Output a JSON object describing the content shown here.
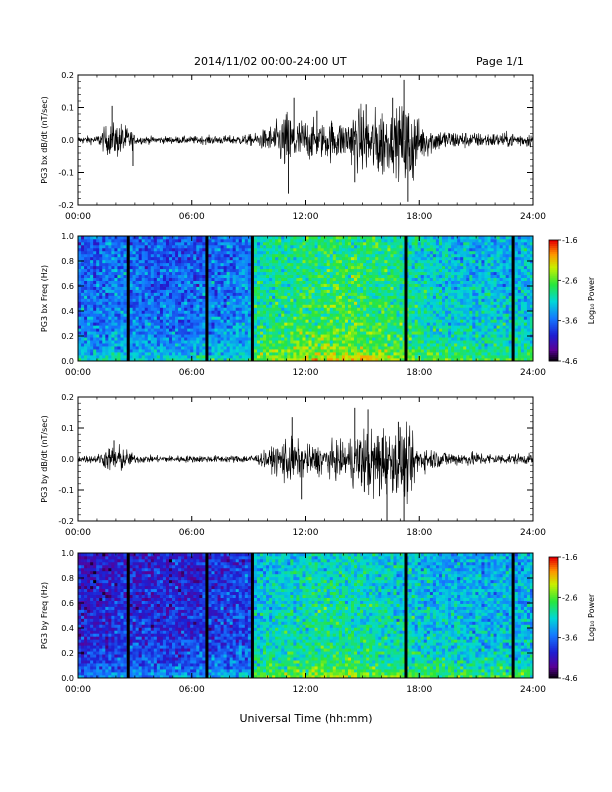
{
  "header": {
    "title": "2014/11/02  00:00-24:00 UT",
    "page": "Page 1/1"
  },
  "footer": {
    "xlabel": "Universal Time (hh:mm)"
  },
  "chart_data": [
    {
      "type": "line",
      "ylabel": "PG3 bx dB/dt (nT/sec)",
      "ylim": [
        -0.2,
        0.2
      ],
      "yticks": [
        "-0.2",
        "-0.1",
        "0.0",
        "0.1",
        "0.2"
      ],
      "xticks": [
        "00:00",
        "06:00",
        "12:00",
        "18:00",
        "24:00"
      ],
      "x_range_hours": [
        0,
        24
      ],
      "envelope": {
        "hours": [
          0,
          1,
          1.5,
          2.2,
          2.8,
          3,
          4,
          5,
          6,
          7,
          8,
          9,
          9.5,
          10,
          10.5,
          11,
          11.5,
          12,
          12.5,
          13,
          13.5,
          14,
          14.5,
          15,
          15.5,
          16,
          16.5,
          17,
          17.5,
          18,
          19,
          20,
          21,
          22,
          23,
          24
        ],
        "upper": [
          0.01,
          0.012,
          0.04,
          0.05,
          0.03,
          0.012,
          0.01,
          0.01,
          0.01,
          0.012,
          0.012,
          0.015,
          0.02,
          0.035,
          0.05,
          0.08,
          0.06,
          0.06,
          0.05,
          0.045,
          0.06,
          0.05,
          0.08,
          0.09,
          0.07,
          0.1,
          0.07,
          0.09,
          0.12,
          0.05,
          0.03,
          0.025,
          0.02,
          0.02,
          0.02,
          0.02
        ],
        "lower": [
          -0.01,
          -0.012,
          -0.04,
          -0.05,
          -0.03,
          -0.012,
          -0.01,
          -0.01,
          -0.01,
          -0.012,
          -0.012,
          -0.015,
          -0.02,
          -0.035,
          -0.05,
          -0.1,
          -0.07,
          -0.06,
          -0.05,
          -0.05,
          -0.06,
          -0.05,
          -0.07,
          -0.09,
          -0.1,
          -0.12,
          -0.07,
          -0.1,
          -0.16,
          -0.06,
          -0.03,
          -0.025,
          -0.02,
          -0.02,
          -0.02,
          -0.02
        ]
      },
      "spikes": [
        {
          "hour": 1.8,
          "value": 0.105
        },
        {
          "hour": 2.9,
          "value": -0.08
        },
        {
          "hour": 11.1,
          "value": -0.165
        },
        {
          "hour": 11.4,
          "value": 0.13
        },
        {
          "hour": 12.6,
          "value": 0.09
        },
        {
          "hour": 14.6,
          "value": -0.13
        },
        {
          "hour": 15.2,
          "value": 0.11
        },
        {
          "hour": 16.6,
          "value": 0.13
        },
        {
          "hour": 17.2,
          "value": 0.185
        },
        {
          "hour": 17.4,
          "value": -0.19
        }
      ]
    },
    {
      "type": "heatmap",
      "ylabel": "PG3 bx Freq (Hz)",
      "ylim": [
        0,
        1.0
      ],
      "yticks": [
        "0.0",
        "0.2",
        "0.4",
        "0.6",
        "0.8",
        "1.0"
      ],
      "xticks": [
        "00:00",
        "06:00",
        "12:00",
        "18:00",
        "24:00"
      ],
      "colorbar": {
        "label": "Log₁₀ Power",
        "min": -4.6,
        "max": -1.6,
        "ticks": [
          "-1.6",
          "-2.6",
          "-3.6",
          "-4.6"
        ]
      },
      "gaps_hours": [
        2.65,
        6.8,
        9.2,
        17.3,
        22.95
      ],
      "level_profile": {
        "hours": [
          0,
          2,
          4,
          6,
          8,
          9.2,
          9.3,
          10,
          11,
          12,
          13,
          14,
          15,
          16,
          17,
          18,
          19,
          20,
          22,
          24
        ],
        "log_power": [
          -3.6,
          -3.5,
          -3.6,
          -3.6,
          -3.5,
          -3.4,
          -3.0,
          -2.9,
          -2.85,
          -2.8,
          -2.75,
          -2.7,
          -2.75,
          -2.8,
          -2.9,
          -3.0,
          -3.1,
          -3.15,
          -3.2,
          -3.2
        ]
      }
    },
    {
      "type": "line",
      "ylabel": "PG3 by dB/dt (nT/sec)",
      "ylim": [
        -0.2,
        0.2
      ],
      "yticks": [
        "-0.2",
        "-0.1",
        "0.0",
        "0.1",
        "0.2"
      ],
      "xticks": [
        "00:00",
        "06:00",
        "12:00",
        "18:00",
        "24:00"
      ],
      "x_range_hours": [
        0,
        24
      ],
      "envelope": {
        "hours": [
          0,
          1,
          1.5,
          2,
          2.5,
          3,
          4,
          5,
          6,
          7,
          8,
          9,
          9.5,
          10,
          10.5,
          11,
          11.5,
          12,
          12.5,
          13,
          13.5,
          14,
          14.5,
          15,
          15.5,
          16,
          16.5,
          17,
          17.5,
          18,
          19,
          20,
          21,
          22,
          23,
          24
        ],
        "upper": [
          0.01,
          0.012,
          0.03,
          0.045,
          0.03,
          0.012,
          0.01,
          0.01,
          0.01,
          0.01,
          0.01,
          0.012,
          0.015,
          0.025,
          0.04,
          0.07,
          0.05,
          0.04,
          0.04,
          0.04,
          0.05,
          0.045,
          0.07,
          0.09,
          0.08,
          0.11,
          0.07,
          0.1,
          0.07,
          0.04,
          0.025,
          0.02,
          0.02,
          0.015,
          0.015,
          0.015
        ],
        "lower": [
          -0.01,
          -0.012,
          -0.03,
          -0.05,
          -0.03,
          -0.012,
          -0.01,
          -0.01,
          -0.01,
          -0.01,
          -0.01,
          -0.012,
          -0.015,
          -0.03,
          -0.045,
          -0.08,
          -0.06,
          -0.05,
          -0.05,
          -0.045,
          -0.06,
          -0.05,
          -0.08,
          -0.1,
          -0.12,
          -0.11,
          -0.08,
          -0.12,
          -0.12,
          -0.04,
          -0.025,
          -0.02,
          -0.02,
          -0.015,
          -0.015,
          -0.015
        ]
      },
      "spikes": [
        {
          "hour": 1.9,
          "value": 0.06
        },
        {
          "hour": 11.3,
          "value": 0.135
        },
        {
          "hour": 11.8,
          "value": -0.13
        },
        {
          "hour": 14.6,
          "value": 0.165
        },
        {
          "hour": 15.3,
          "value": 0.16
        },
        {
          "hour": 16.3,
          "value": -0.2
        },
        {
          "hour": 16.9,
          "value": 0.12
        },
        {
          "hour": 17.2,
          "value": -0.2
        },
        {
          "hour": 15.9,
          "value": -0.12
        }
      ]
    },
    {
      "type": "heatmap",
      "ylabel": "PG3 by Freq (Hz)",
      "ylim": [
        0,
        1.0
      ],
      "yticks": [
        "0.0",
        "0.2",
        "0.4",
        "0.6",
        "0.8",
        "1.0"
      ],
      "xticks": [
        "00:00",
        "06:00",
        "12:00",
        "18:00",
        "24:00"
      ],
      "colorbar": {
        "label": "Log₁₀ Power",
        "min": -4.6,
        "max": -1.6,
        "ticks": [
          "-1.6",
          "-2.6",
          "-3.6",
          "-4.6"
        ]
      },
      "gaps_hours": [
        2.65,
        6.8,
        9.2,
        17.3,
        22.95
      ],
      "level_profile": {
        "hours": [
          0,
          2,
          4,
          6,
          8,
          9.2,
          9.3,
          10,
          11,
          12,
          13,
          14,
          15,
          16,
          17,
          18,
          19,
          20,
          22,
          24
        ],
        "log_power": [
          -4.0,
          -3.9,
          -3.9,
          -3.9,
          -3.8,
          -3.7,
          -3.2,
          -3.1,
          -3.05,
          -3.0,
          -2.95,
          -2.95,
          -3.0,
          -3.05,
          -3.1,
          -3.15,
          -3.2,
          -3.2,
          -3.25,
          -3.25
        ]
      }
    }
  ]
}
